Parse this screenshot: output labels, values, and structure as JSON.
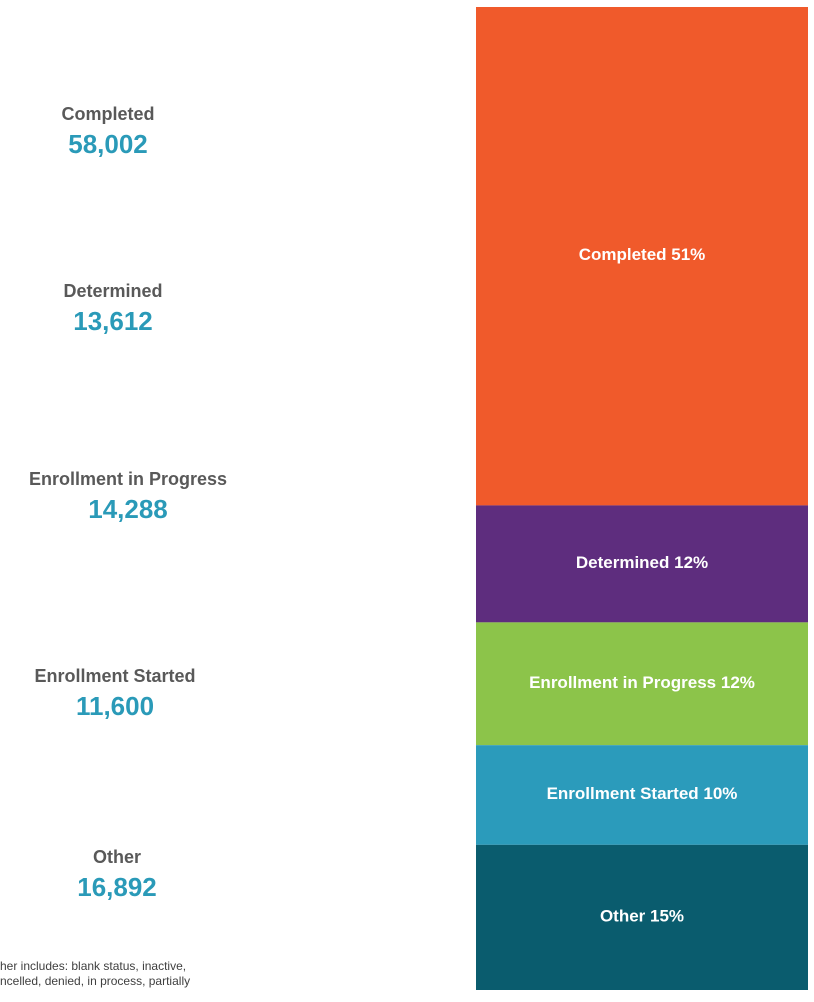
{
  "chart_data": {
    "type": "bar",
    "stacked": true,
    "categories": [
      "Completed",
      "Determined",
      "Enrollment in Progress",
      "Enrollment Started",
      "Other"
    ],
    "values": [
      58002,
      13612,
      14288,
      11600,
      16892
    ],
    "value_labels": [
      "58,002",
      "13,612",
      "14,288",
      "11,600",
      "16,892"
    ],
    "percent_labels": [
      "51%",
      "12%",
      "12%",
      "10%",
      "15%"
    ],
    "colors": [
      "#f05a2b",
      "#5e2d7e",
      "#8cc44a",
      "#2b9bbb",
      "#0a5c6e"
    ],
    "note": [
      "her includes: blank status, inactive,",
      "ncelled, denied, in process, partially"
    ]
  }
}
